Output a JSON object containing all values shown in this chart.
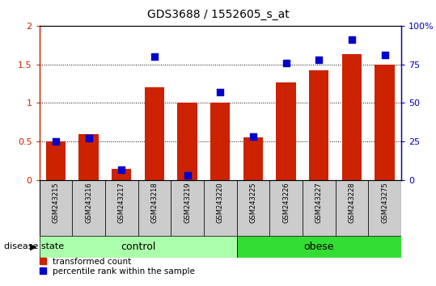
{
  "title": "GDS3688 / 1552605_s_at",
  "samples": [
    "GSM243215",
    "GSM243216",
    "GSM243217",
    "GSM243218",
    "GSM243219",
    "GSM243220",
    "GSM243225",
    "GSM243226",
    "GSM243227",
    "GSM243228",
    "GSM243275"
  ],
  "transformed_count": [
    0.5,
    0.6,
    0.15,
    1.2,
    1.0,
    1.0,
    0.55,
    1.27,
    1.42,
    1.63,
    1.5
  ],
  "percentile_rank": [
    25,
    27,
    7,
    80,
    3,
    57,
    28,
    76,
    78,
    91,
    81
  ],
  "groups": [
    {
      "label": "control",
      "indices": [
        0,
        1,
        2,
        3,
        4,
        5
      ],
      "color": "#90EE90"
    },
    {
      "label": "obese",
      "indices": [
        6,
        7,
        8,
        9,
        10
      ],
      "color": "#3DCC3D"
    }
  ],
  "bar_color": "#CC2200",
  "dot_color": "#0000CC",
  "ylim_left": [
    0,
    2
  ],
  "ylim_right": [
    0,
    100
  ],
  "yticks_left": [
    0,
    0.5,
    1.0,
    1.5,
    2.0
  ],
  "ytick_labels_left": [
    "0",
    "0.5",
    "1",
    "1.5",
    "2"
  ],
  "yticks_right": [
    0,
    25,
    50,
    75,
    100
  ],
  "ytick_labels_right": [
    "0",
    "25",
    "50",
    "75",
    "100%"
  ],
  "left_axis_color": "#CC2200",
  "right_axis_color": "#0000CC",
  "bar_width": 0.6,
  "dot_size": 30,
  "label_box_color": "#CCCCCC",
  "control_color": "#AAFFAA",
  "obese_color": "#33DD33"
}
